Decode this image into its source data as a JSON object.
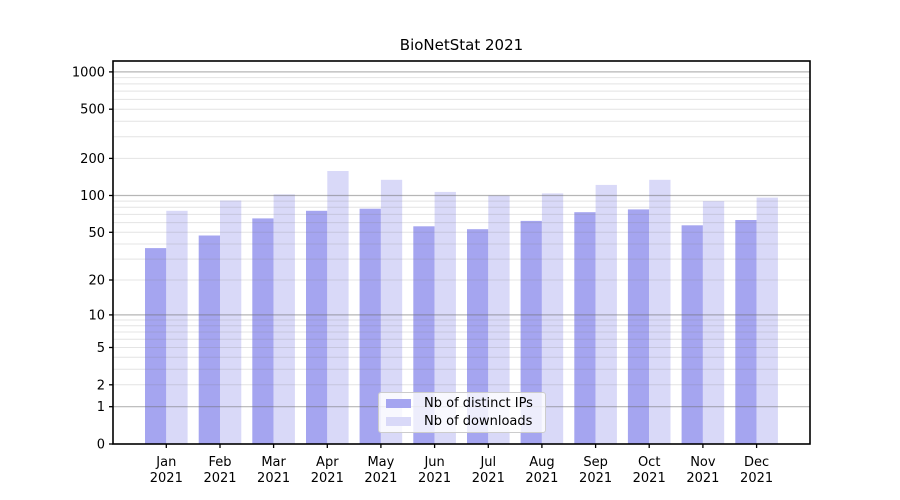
{
  "figure": {
    "title": "BioNetStat 2021"
  },
  "colors": {
    "ips_bar": "#a5a5f0",
    "downloads_bar": "#d9d9f8",
    "grid_major": "rgba(110,110,110,0.50)",
    "grid_minor": "rgba(130,130,130,0.22)",
    "frame": "#000000",
    "tick": "#000000",
    "legend_border": "#cccccc",
    "legend_background": "rgba(255,255,255,0.8)"
  },
  "chart_data": {
    "type": "bar",
    "title": "BioNetStat 2021",
    "scale": "log1p",
    "grid": true,
    "legend_position": "lower center",
    "categories": [
      "Jan",
      "Feb",
      "Mar",
      "Apr",
      "May",
      "Jun",
      "Jul",
      "Aug",
      "Sep",
      "Oct",
      "Nov",
      "Dec"
    ],
    "x_tick_year": "2021",
    "series": [
      {
        "name": "Nb of distinct IPs",
        "color_key": "ips_bar",
        "values": [
          37,
          47,
          65,
          75,
          78,
          56,
          53,
          62,
          73,
          77,
          57,
          63
        ]
      },
      {
        "name": "Nb of downloads",
        "color_key": "downloads_bar",
        "values": [
          75,
          91,
          102,
          158,
          134,
          107,
          100,
          104,
          122,
          134,
          90,
          96
        ]
      }
    ],
    "y_ticks": [
      0,
      1,
      2,
      5,
      10,
      20,
      50,
      100,
      200,
      500,
      1000
    ],
    "ylim": [
      0,
      1230
    ],
    "xlabel": "",
    "ylabel": ""
  }
}
